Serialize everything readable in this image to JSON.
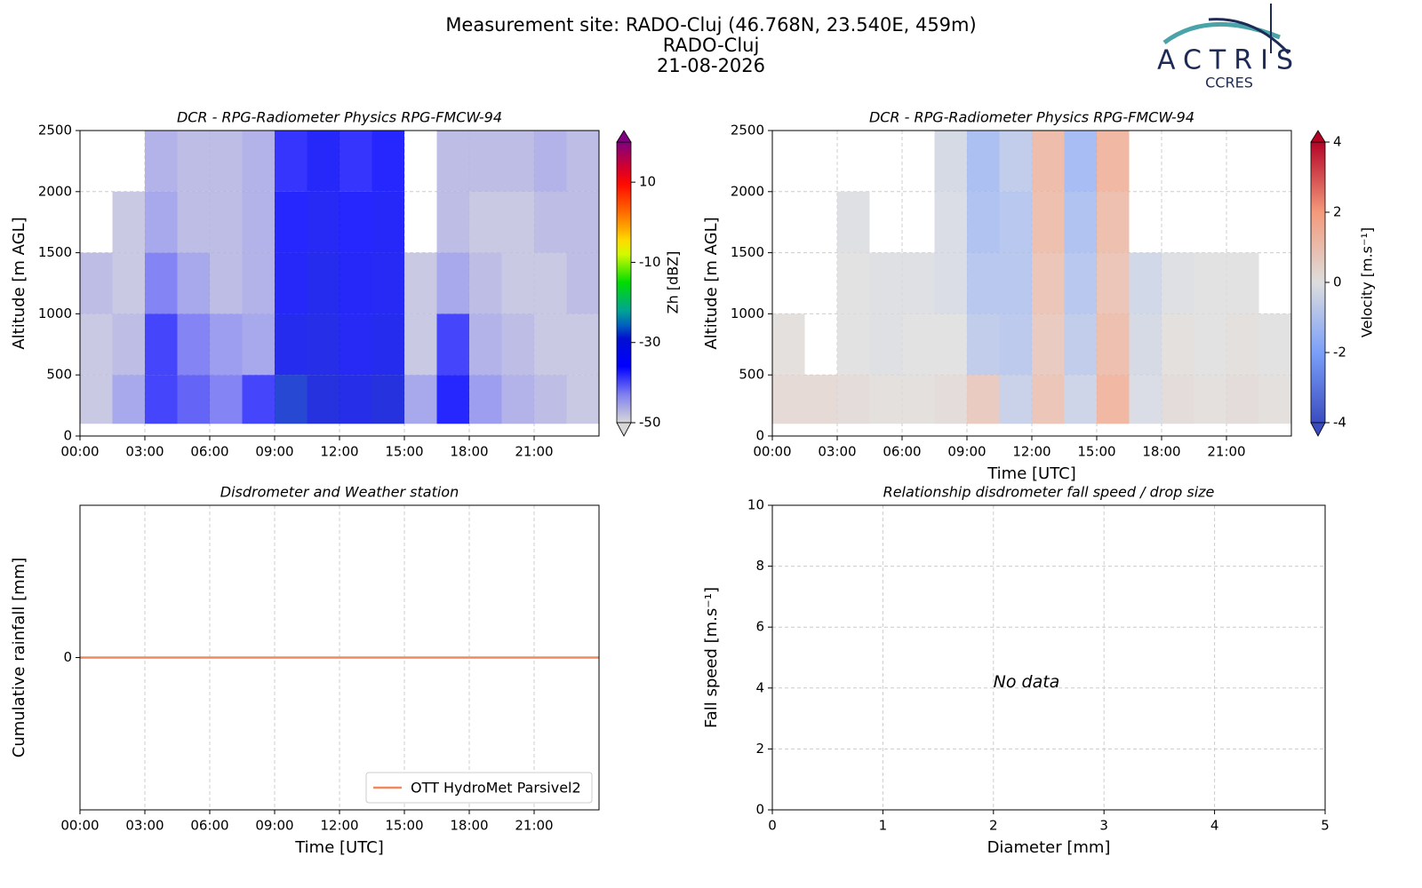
{
  "header": {
    "title": [
      "Measurement site: RADO-Cluj (46.768N, 23.540E, 459m)",
      "RADO-Cluj",
      "21-08-2026"
    ],
    "logo": "ACTRIS",
    "logo_sub": "CCRES"
  },
  "chart_data": [
    {
      "type": "heatmap",
      "title": "DCR - RPG-Radiometer Physics RPG-FMCW-94",
      "y_label": "Altitude [m AGL]",
      "colorbar_label": "Zh [dBZ]",
      "xbins": [
        0,
        1.5,
        3,
        4.5,
        6,
        7.5,
        9,
        10.5,
        12,
        13.5,
        15,
        16.5,
        18,
        19.5,
        21,
        22.5,
        24
      ],
      "ybins": [
        100,
        500,
        1000,
        1500,
        2000,
        2500
      ],
      "values": [
        [
          -48,
          -45,
          -38,
          -40,
          -42,
          -38,
          -28,
          -30,
          -32,
          -30,
          -45,
          -36,
          -44,
          -46,
          -47,
          -48
        ],
        [
          -48,
          -47,
          -38,
          -42,
          -44,
          -45,
          -33,
          -32,
          -34,
          -33,
          -48,
          -38,
          -46,
          -47,
          -48,
          -48
        ],
        [
          -47,
          -48,
          -42,
          -45,
          -47,
          -46,
          -35,
          -33,
          -35,
          -34,
          -48,
          -45,
          -47,
          -48,
          -48,
          -47
        ],
        [
          null,
          -48,
          -45,
          -47,
          -47,
          -46,
          -36,
          -34,
          -36,
          -35,
          null,
          -47,
          -48,
          -48,
          -47,
          -47
        ],
        [
          null,
          null,
          -46,
          -47,
          -47,
          -46,
          -37,
          -35,
          -37,
          -36,
          null,
          -47,
          -47,
          -47,
          -46,
          -47
        ]
      ],
      "xlim": [
        0,
        24
      ],
      "ylim": [
        0,
        2500
      ],
      "xticks": [
        {
          "value": 0,
          "label": "00:00"
        },
        {
          "value": 3,
          "label": "03:00"
        },
        {
          "value": 6,
          "label": "06:00"
        },
        {
          "value": 9,
          "label": "09:00"
        },
        {
          "value": 12,
          "label": "12:00"
        },
        {
          "value": 15,
          "label": "15:00"
        },
        {
          "value": 18,
          "label": "18:00"
        },
        {
          "value": 21,
          "label": "21:00"
        }
      ],
      "yticks": [
        0,
        500,
        1000,
        1500,
        2000,
        2500
      ],
      "clim": [
        -50,
        20
      ],
      "cticks": [
        -50,
        -30,
        -10,
        10
      ],
      "colormap": "zh",
      "grid": true
    },
    {
      "type": "heatmap",
      "title": "DCR - RPG-Radiometer Physics RPG-FMCW-94",
      "x_label": "Time [UTC]",
      "y_label": "Altitude [m AGL]",
      "colorbar_label": "Velocity [m.s⁻¹]",
      "xbins": [
        0,
        1.5,
        3,
        4.5,
        6,
        7.5,
        9,
        10.5,
        12,
        13.5,
        15,
        16.5,
        18,
        19.5,
        21,
        22.5,
        24
      ],
      "ybins": [
        100,
        500,
        1000,
        1500,
        2000,
        2500
      ],
      "values": [
        [
          0.3,
          0.3,
          0.2,
          0.1,
          0.1,
          0.2,
          0.8,
          -0.6,
          1.0,
          -0.5,
          1.5,
          -0.2,
          0.2,
          0.1,
          0.2,
          0.1
        ],
        [
          0.1,
          null,
          0,
          -0.1,
          0,
          0,
          -0.8,
          -0.9,
          0.8,
          -0.8,
          1.2,
          -0.3,
          0.1,
          0,
          0.1,
          0
        ],
        [
          null,
          null,
          0,
          -0.1,
          -0.1,
          -0.2,
          -1.0,
          -1.0,
          1.0,
          -1.0,
          1.0,
          -0.4,
          -0.1,
          0,
          0,
          null
        ],
        [
          null,
          null,
          -0.1,
          null,
          null,
          -0.2,
          -1.2,
          -1.0,
          1.2,
          -1.2,
          1.2,
          null,
          null,
          null,
          null,
          null
        ],
        [
          null,
          null,
          null,
          null,
          null,
          -0.3,
          -1.3,
          -0.8,
          1.3,
          -1.4,
          1.5,
          null,
          null,
          null,
          null,
          null
        ]
      ],
      "xlim": [
        0,
        24
      ],
      "ylim": [
        0,
        2500
      ],
      "xticks": [
        {
          "value": 0,
          "label": "00:00"
        },
        {
          "value": 3,
          "label": "03:00"
        },
        {
          "value": 6,
          "label": "06:00"
        },
        {
          "value": 9,
          "label": "09:00"
        },
        {
          "value": 12,
          "label": "12:00"
        },
        {
          "value": 15,
          "label": "15:00"
        },
        {
          "value": 18,
          "label": "18:00"
        },
        {
          "value": 21,
          "label": "21:00"
        }
      ],
      "yticks": [
        0,
        500,
        1000,
        1500,
        2000,
        2500
      ],
      "clim": [
        -4,
        4
      ],
      "cticks": [
        -4,
        -2,
        0,
        2,
        4
      ],
      "colormap": "velocity",
      "grid": true
    },
    {
      "type": "line",
      "title": "Disdrometer and Weather station",
      "x_label": "Time [UTC]",
      "y_label": "Cumulative rainfall [mm]",
      "x": [
        0,
        24
      ],
      "series": [
        {
          "name": "OTT HydroMet Parsivel2",
          "color": "#ef8a5f",
          "values": [
            0,
            0
          ]
        }
      ],
      "xlim": [
        0,
        24
      ],
      "ylim": [
        -0.05,
        0.05
      ],
      "xticks": [
        {
          "value": 0,
          "label": "00:00"
        },
        {
          "value": 3,
          "label": "03:00"
        },
        {
          "value": 6,
          "label": "06:00"
        },
        {
          "value": 9,
          "label": "09:00"
        },
        {
          "value": 12,
          "label": "12:00"
        },
        {
          "value": 15,
          "label": "15:00"
        },
        {
          "value": 18,
          "label": "18:00"
        },
        {
          "value": 21,
          "label": "21:00"
        }
      ],
      "yticks": [
        0
      ],
      "legend": "lower right",
      "grid": true
    },
    {
      "type": "scatter",
      "title": "Relationship disdrometer fall speed / drop size",
      "x_label": "Diameter [mm]",
      "y_label": "Fall speed [m.s⁻¹]",
      "annotation": "No data",
      "xlim": [
        0,
        5
      ],
      "ylim": [
        0,
        10
      ],
      "xticks": [
        0,
        1,
        2,
        3,
        4,
        5
      ],
      "yticks": [
        0,
        2,
        4,
        6,
        8,
        10
      ],
      "grid": true
    }
  ]
}
